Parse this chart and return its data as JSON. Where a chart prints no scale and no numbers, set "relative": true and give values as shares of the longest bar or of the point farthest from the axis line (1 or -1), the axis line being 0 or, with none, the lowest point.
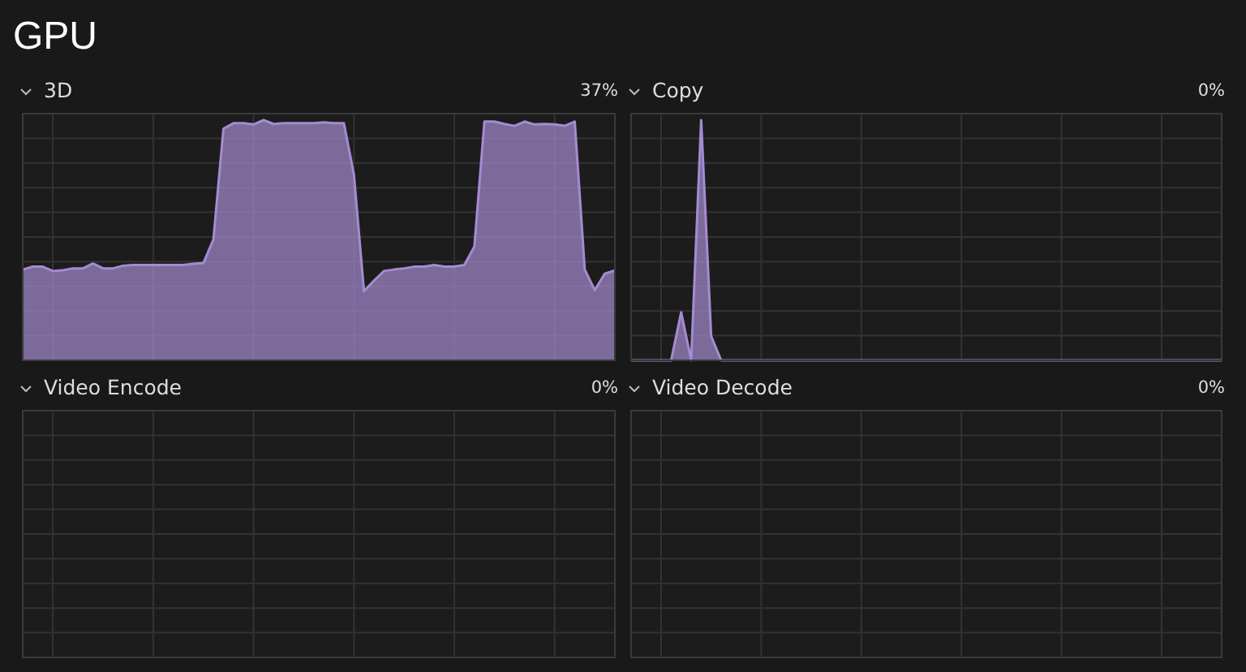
{
  "chart_data": [
    {
      "type": "other",
      "title": "GPU"
    },
    {
      "type": "area",
      "title": "3D",
      "annotations": [
        "37%"
      ],
      "relative": true,
      "grid": true,
      "color": "#a58bd0",
      "categories": [
        null,
        null,
        null,
        null,
        null,
        null,
        null,
        null,
        null,
        null,
        null,
        null,
        null,
        null,
        null,
        null,
        null,
        null,
        null,
        null,
        null,
        null,
        null,
        null,
        null,
        null,
        null,
        null,
        null,
        null,
        null,
        null,
        null,
        null,
        null,
        null,
        null,
        null,
        null,
        null,
        null,
        null,
        null,
        null,
        null,
        null,
        null,
        null,
        null,
        null,
        null,
        null,
        null,
        null,
        null,
        null,
        null,
        null,
        null,
        null
      ],
      "values": [
        0.378,
        0.39,
        0.39,
        0.372,
        0.375,
        0.383,
        0.383,
        0.403,
        0.383,
        0.383,
        0.394,
        0.397,
        0.397,
        0.397,
        0.397,
        0.397,
        0.397,
        0.402,
        0.405,
        0.503,
        0.964,
        0.987,
        0.987,
        0.982,
        1,
        0.984,
        0.987,
        0.987,
        0.987,
        0.987,
        0.991,
        0.987,
        0.987,
        0.773,
        0.288,
        0.332,
        0.372,
        0.378,
        0.383,
        0.39,
        0.39,
        0.397,
        0.39,
        0.39,
        0.397,
        0.474,
        0.994,
        0.994,
        0.984,
        0.976,
        0.994,
        0.982,
        0.984,
        0.982,
        0.976,
        0.994,
        0.378,
        0.292,
        0.361,
        0.374
      ]
    },
    {
      "type": "area",
      "title": "Copy",
      "annotations": [
        "0%"
      ],
      "relative": true,
      "grid": true,
      "color": "#a58bd0",
      "categories": [
        null,
        null,
        null,
        null,
        null,
        null,
        null,
        null,
        null,
        null,
        null,
        null,
        null,
        null,
        null,
        null,
        null,
        null,
        null,
        null,
        null,
        null,
        null,
        null,
        null,
        null,
        null,
        null,
        null,
        null,
        null,
        null,
        null,
        null,
        null,
        null,
        null,
        null,
        null,
        null,
        null,
        null,
        null,
        null,
        null,
        null,
        null,
        null,
        null,
        null,
        null,
        null,
        null,
        null,
        null,
        null,
        null,
        null,
        null,
        null
      ],
      "values": [
        0,
        0,
        0,
        0,
        0,
        0.2,
        0,
        1,
        0.1,
        0,
        0,
        0,
        0,
        0,
        0,
        0,
        0,
        0,
        0,
        0,
        0,
        0,
        0,
        0,
        0,
        0,
        0,
        0,
        0,
        0,
        0,
        0,
        0,
        0,
        0,
        0,
        0,
        0,
        0,
        0,
        0,
        0,
        0,
        0,
        0,
        0,
        0,
        0,
        0,
        0,
        0,
        0,
        0,
        0,
        0,
        0,
        0,
        0,
        0,
        0
      ]
    },
    {
      "type": "other",
      "title": "Video Encode",
      "annotations": [
        "0%"
      ]
    },
    {
      "type": "other",
      "title": "Video Decode",
      "annotations": [
        "0%"
      ]
    }
  ]
}
